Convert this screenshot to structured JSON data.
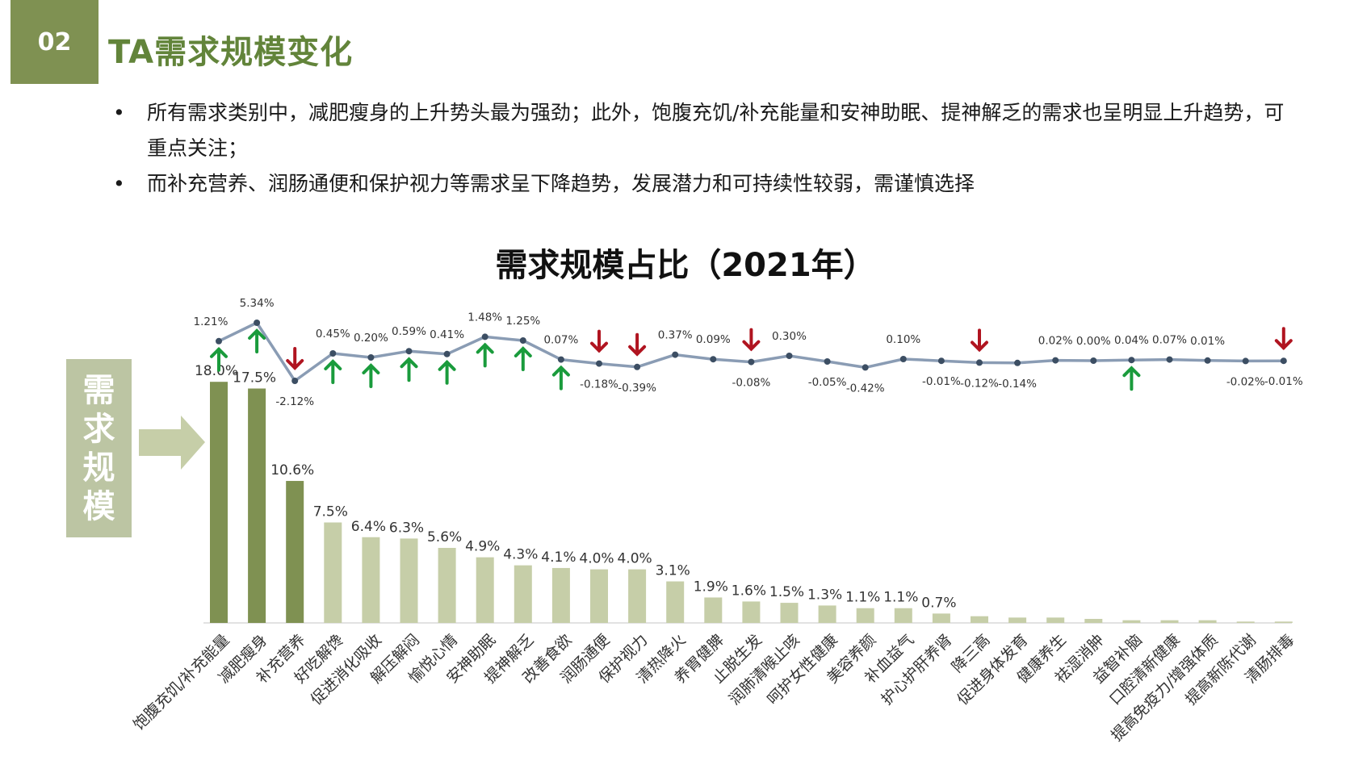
{
  "header": {
    "section_number": "02",
    "title": "TA需求规模变化"
  },
  "bullets": [
    "所有需求类别中，减肥瘦身的上升势头最为强劲；此外，饱腹充饥/补充能量和安神助眠、提神解乏的需求也呈明显上升趋势，可重点关注；",
    "而补充营养、润肠通便和保护视力等需求呈下降趋势，发展潜力和可持续性较弱，需谨慎选择"
  ],
  "side_label": [
    "需",
    "求",
    "规",
    "模"
  ],
  "colors": {
    "accent": "#7f9152",
    "bar_dark": "#7f9152",
    "bar_light": "#c6cea8",
    "line": "#8a9cb4",
    "up": "#1a9b3c",
    "down": "#b01420"
  },
  "chart_data": {
    "type": "bar",
    "title": "需求规模占比（2021年）",
    "categories": [
      "饱腹充饥/补充能量",
      "减肥瘦身",
      "补充营养",
      "好吃解馋",
      "促进消化吸收",
      "解压解闷",
      "愉悦心情",
      "安神助眠",
      "提神解乏",
      "改善食欲",
      "润肠通便",
      "保护视力",
      "清热降火",
      "养胃健脾",
      "止脱生发",
      "润肺清喉止咳",
      "呵护女性健康",
      "美容养颜",
      "补血益气",
      "护心护肝养肾",
      "降三高",
      "促进身体发育",
      "健康养生",
      "祛湿消肿",
      "益智补脑",
      "口腔清新健康",
      "提高免疫力/增强体质",
      "提高新陈代谢",
      "清肠排毒"
    ],
    "values": [
      18.0,
      17.5,
      10.6,
      7.5,
      6.4,
      6.3,
      5.6,
      4.9,
      4.3,
      4.1,
      4.0,
      4.0,
      3.1,
      1.9,
      1.6,
      1.5,
      1.3,
      1.1,
      1.1,
      0.7,
      0.5,
      0.4,
      0.4,
      0.3,
      0.2,
      0.2,
      0.2,
      0.1,
      0.1
    ],
    "value_labels": [
      "18.0%",
      "17.5%",
      "10.6%",
      "7.5%",
      "6.4%",
      "6.3%",
      "5.6%",
      "4.9%",
      "4.3%",
      "4.1%",
      "4.0%",
      "4.0%",
      "3.1%",
      "1.9%",
      "1.6%",
      "1.5%",
      "1.3%",
      "1.1%",
      "1.1%",
      "0.7%",
      "",
      "",
      "",
      "",
      "",
      "",
      "",
      "",
      ""
    ],
    "highlight_top": 3,
    "change_series": {
      "name": "",
      "values": [
        1.21,
        5.34,
        -2.12,
        0.45,
        0.2,
        0.59,
        0.41,
        1.48,
        1.25,
        0.07,
        -0.18,
        -0.39,
        0.37,
        0.09,
        -0.08,
        0.3,
        -0.05,
        -0.42,
        0.1,
        -0.01,
        -0.12,
        -0.14,
        0.02,
        0.0,
        0.04,
        0.07,
        0.01,
        -0.02,
        -0.01
      ],
      "labels": [
        "1.21%",
        "5.34%",
        "-2.12%",
        "0.45%",
        "0.20%",
        "0.59%",
        "0.41%",
        "1.48%",
        "1.25%",
        "0.07%",
        "-0.18%",
        "-0.39%",
        "0.37%",
        "0.09%",
        "-0.08%",
        "0.30%",
        "-0.05%",
        "-0.42%",
        "0.10%",
        "-0.01%",
        "-0.12%",
        "-0.14%",
        "0.02%",
        "0.00%",
        "0.04%",
        "0.07%",
        "0.01%",
        "-0.02%",
        "-0.01%"
      ],
      "arrows": [
        "up",
        "up",
        "down",
        "up",
        "up",
        "up",
        "up",
        "up",
        "up",
        "up",
        "down",
        "down",
        "",
        "",
        "down",
        "",
        "",
        "",
        "",
        "",
        "down",
        "",
        "",
        "",
        "up",
        "",
        "",
        "",
        "down"
      ]
    }
  }
}
